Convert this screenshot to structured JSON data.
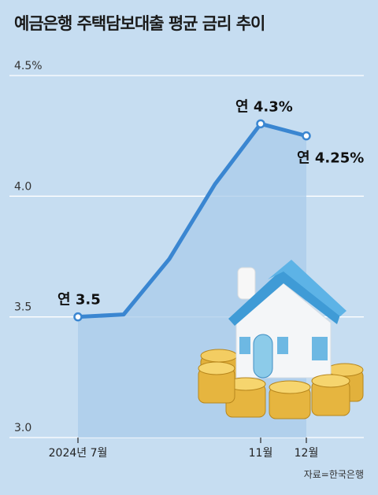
{
  "title": "예금은행 주택담보대출 평균 금리 추이",
  "source": "자료=한국은행",
  "chart_data": {
    "type": "line",
    "title": "예금은행 주택담보대출 평균 금리 추이",
    "xlabel": "",
    "ylabel": "",
    "ylim": [
      3.0,
      4.5
    ],
    "yticks": [
      {
        "value": 4.5,
        "label": "4.5%"
      },
      {
        "value": 4.0,
        "label": "4.0"
      },
      {
        "value": 3.5,
        "label": "3.5"
      },
      {
        "value": 3.0,
        "label": "3.0"
      }
    ],
    "grid": true,
    "x": [
      "2024-07",
      "2024-08",
      "2024-09",
      "2024-10",
      "2024-11",
      "2024-12"
    ],
    "values": [
      3.5,
      3.51,
      3.74,
      4.05,
      4.3,
      4.25
    ],
    "xtick_labels": [
      {
        "index": 0,
        "label": "2024년 7월"
      },
      {
        "index": 4,
        "label": "11월"
      },
      {
        "index": 5,
        "label": "12월"
      }
    ],
    "data_labels": [
      {
        "index": 0,
        "label": "연 3.5"
      },
      {
        "index": 4,
        "label": "연 4.3%"
      },
      {
        "index": 5,
        "label": "연 4.25%"
      }
    ],
    "colors": {
      "line": "#3a86d1",
      "area": "#a9cbea",
      "background": "#c6ddf1",
      "grid": "#ffffff"
    }
  }
}
